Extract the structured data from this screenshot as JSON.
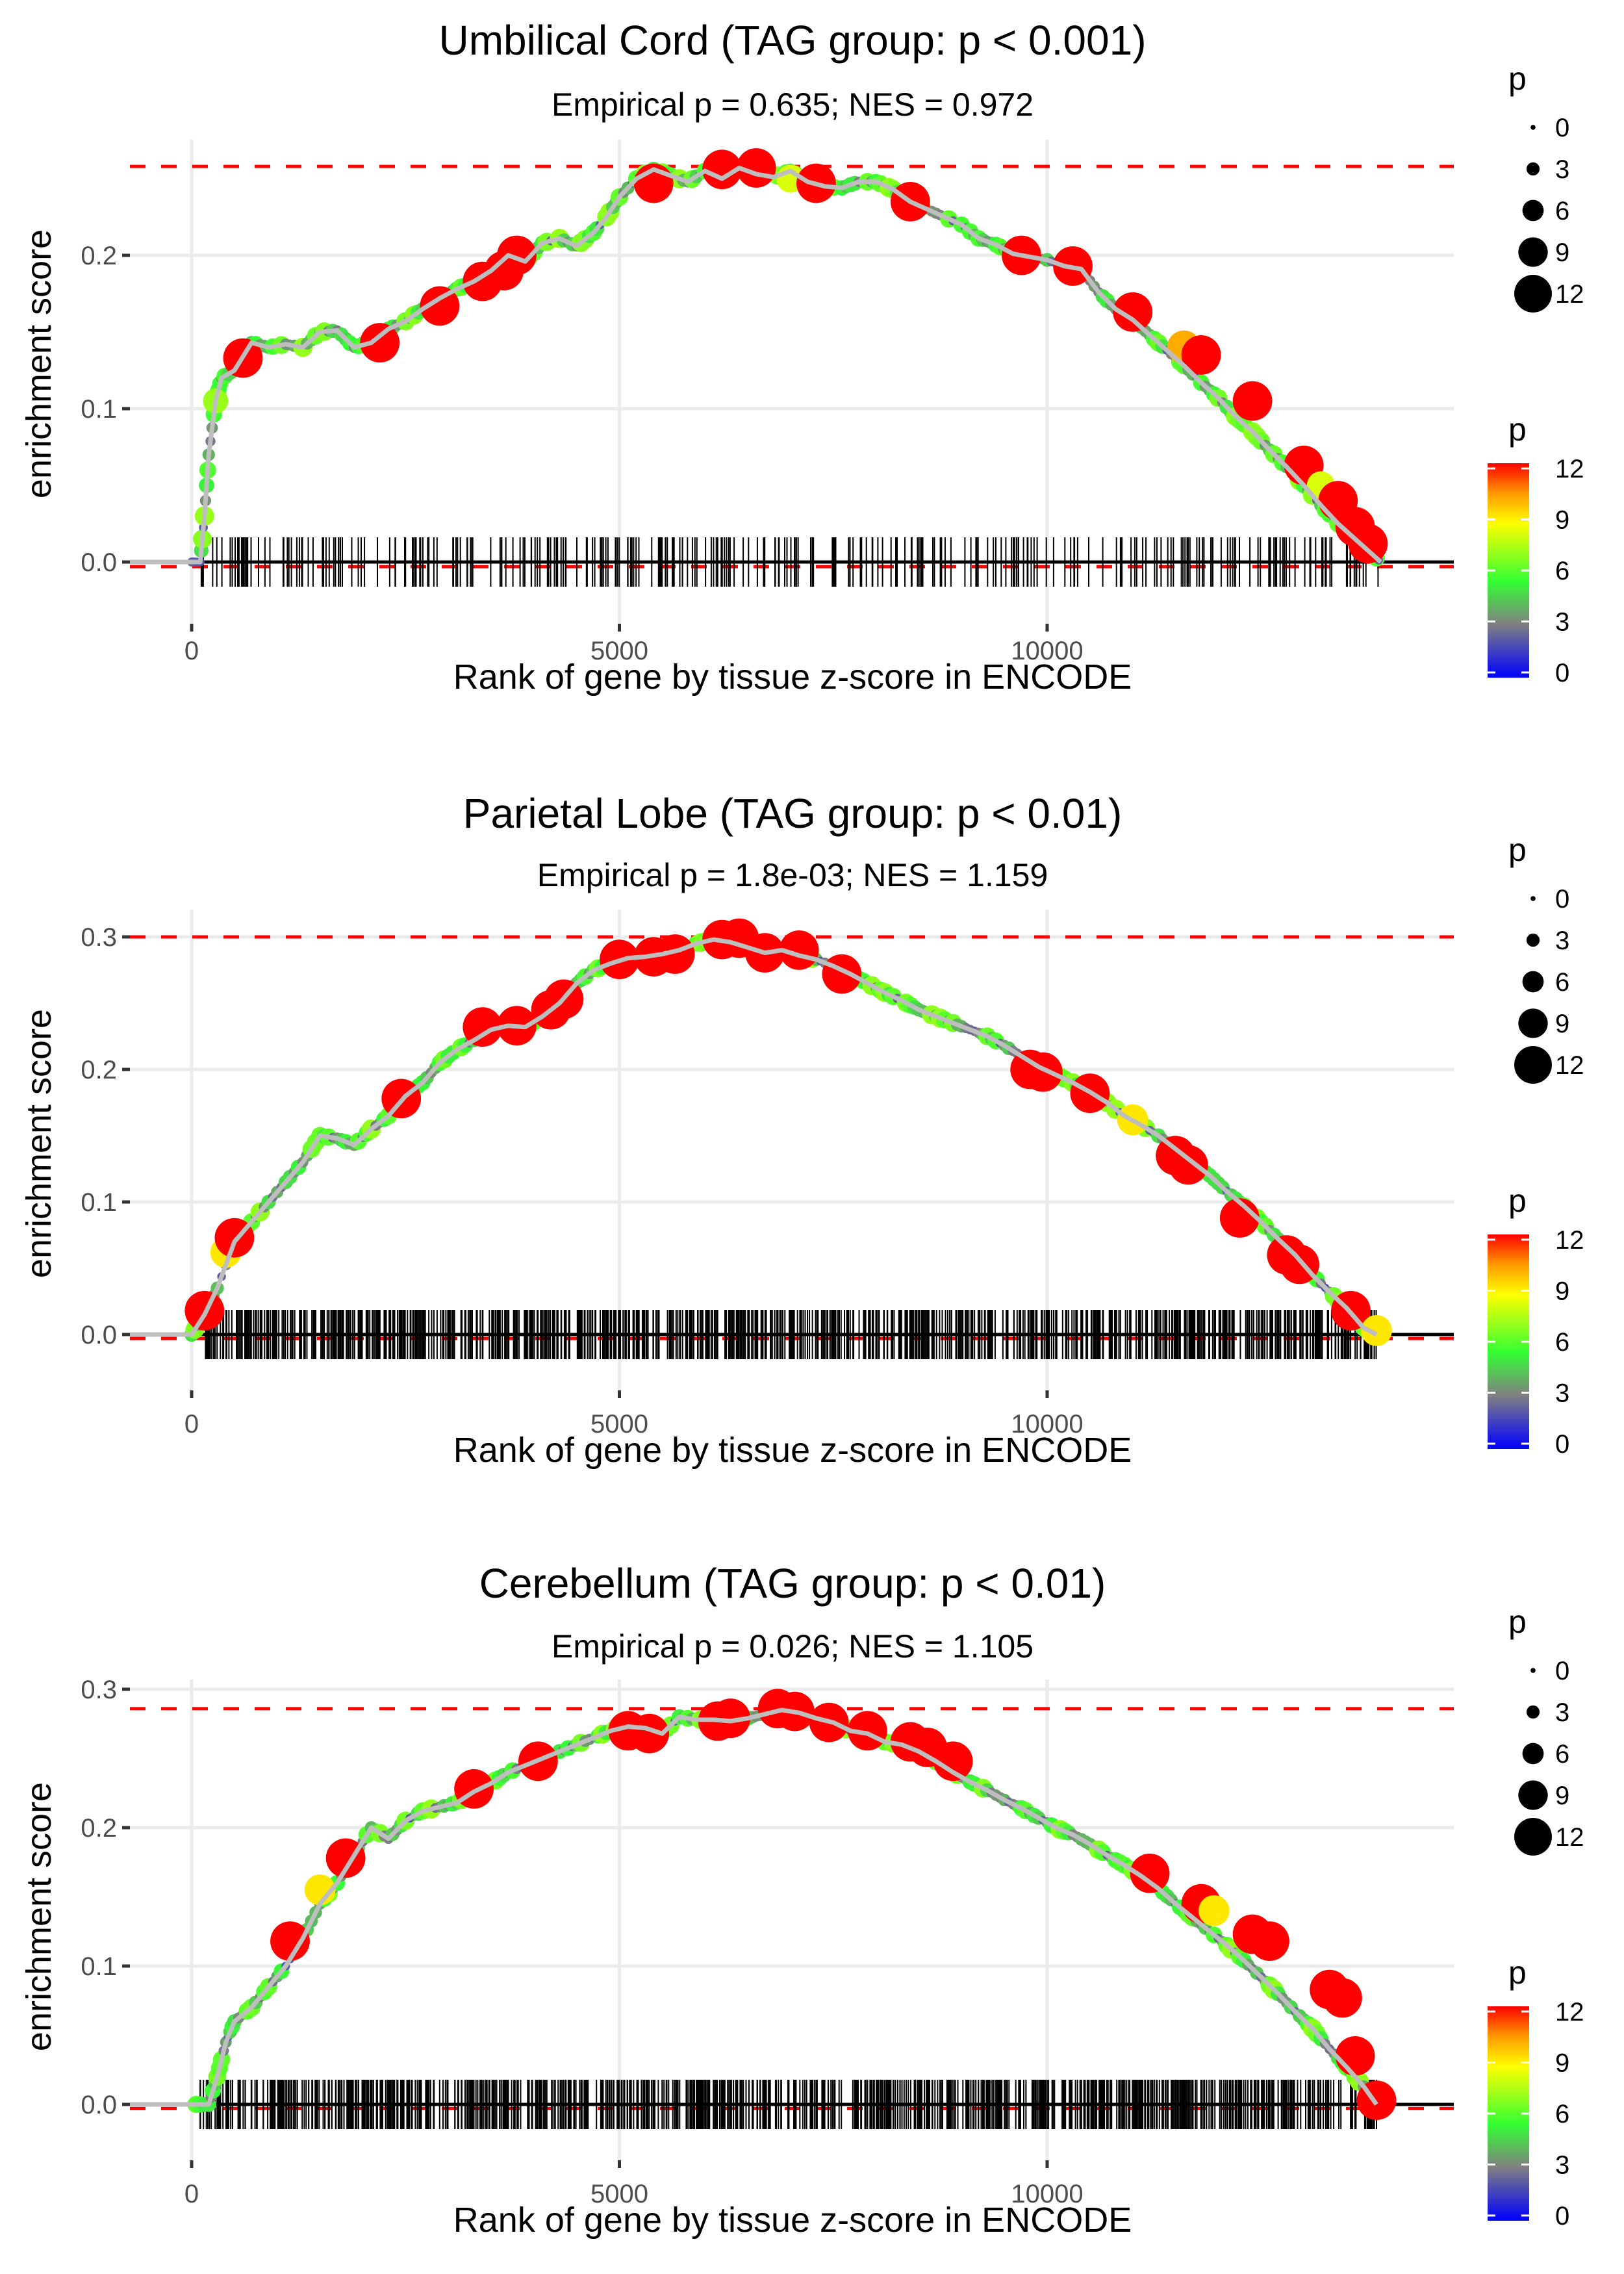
{
  "chart_data": [
    {
      "type": "line",
      "title": "Umbilical Cord (TAG group: p < 0.001)",
      "subtitle": "Empirical p = 0.635; NES = 0.972",
      "xlabel": "Rank of gene by tissue z-score in ENCODE",
      "ylabel": "enrichment score",
      "xlim": [
        -700,
        14700
      ],
      "ylim": [
        -0.02,
        0.275
      ],
      "x_ticks": [
        0,
        5000,
        10000
      ],
      "x_tick_labels": [
        "0",
        "5000",
        "10000"
      ],
      "y_ticks": [
        0.0,
        0.1,
        0.2
      ],
      "y_tick_labels": [
        "0.0",
        "0.1",
        "0.2"
      ],
      "max_es_line": 0.258,
      "min_es_line": -0.003,
      "grid": true,
      "curve": {
        "x": [
          0,
          100,
          150,
          200,
          280,
          350,
          500,
          700,
          900,
          1100,
          1300,
          1500,
          1700,
          1900,
          2100,
          2300,
          2500,
          2700,
          2900,
          3100,
          3300,
          3500,
          3700,
          3900,
          4100,
          4300,
          4500,
          4700,
          4850,
          5000,
          5200,
          5400,
          5600,
          5800,
          6000,
          6200,
          6400,
          6600,
          6800,
          7000,
          7200,
          7400,
          7600,
          7800,
          8000,
          8200,
          8400,
          8600,
          8800,
          9000,
          9200,
          9400,
          9600,
          9800,
          10000,
          10200,
          10400,
          10600,
          10800,
          11000,
          11200,
          11400,
          11600,
          11800,
          12000,
          12200,
          12400,
          12600,
          12800,
          13000,
          13200,
          13400,
          13600,
          13800,
          13900
        ],
        "y": [
          0,
          0.0,
          0.03,
          0.07,
          0.105,
          0.12,
          0.125,
          0.143,
          0.14,
          0.142,
          0.14,
          0.15,
          0.151,
          0.14,
          0.143,
          0.152,
          0.157,
          0.165,
          0.172,
          0.178,
          0.183,
          0.19,
          0.2,
          0.196,
          0.208,
          0.211,
          0.206,
          0.215,
          0.225,
          0.238,
          0.25,
          0.256,
          0.252,
          0.248,
          0.255,
          0.25,
          0.257,
          0.253,
          0.251,
          0.255,
          0.248,
          0.245,
          0.244,
          0.248,
          0.248,
          0.243,
          0.235,
          0.23,
          0.225,
          0.22,
          0.211,
          0.207,
          0.201,
          0.199,
          0.197,
          0.193,
          0.191,
          0.176,
          0.165,
          0.158,
          0.148,
          0.138,
          0.128,
          0.117,
          0.107,
          0.095,
          0.085,
          0.073,
          0.062,
          0.05,
          0.037,
          0.025,
          0.015,
          0.005,
          0.0
        ]
      },
      "big_points": [
        {
          "x": 600,
          "y": 0.133,
          "p": 12
        },
        {
          "x": 280,
          "y": 0.105,
          "p": 7
        },
        {
          "x": 2200,
          "y": 0.143,
          "p": 12
        },
        {
          "x": 2900,
          "y": 0.167,
          "p": 12
        },
        {
          "x": 3400,
          "y": 0.183,
          "p": 12
        },
        {
          "x": 3650,
          "y": 0.19,
          "p": 12
        },
        {
          "x": 3800,
          "y": 0.2,
          "p": 12
        },
        {
          "x": 5400,
          "y": 0.247,
          "p": 12
        },
        {
          "x": 6200,
          "y": 0.256,
          "p": 12
        },
        {
          "x": 6600,
          "y": 0.257,
          "p": 12
        },
        {
          "x": 7000,
          "y": 0.25,
          "p": 8
        },
        {
          "x": 7300,
          "y": 0.247,
          "p": 12
        },
        {
          "x": 8400,
          "y": 0.235,
          "p": 12
        },
        {
          "x": 9700,
          "y": 0.2,
          "p": 12
        },
        {
          "x": 10300,
          "y": 0.193,
          "p": 12
        },
        {
          "x": 11000,
          "y": 0.163,
          "p": 12
        },
        {
          "x": 11600,
          "y": 0.14,
          "p": 10
        },
        {
          "x": 11800,
          "y": 0.135,
          "p": 12
        },
        {
          "x": 12400,
          "y": 0.105,
          "p": 12
        },
        {
          "x": 13000,
          "y": 0.063,
          "p": 12
        },
        {
          "x": 13200,
          "y": 0.05,
          "p": 8
        },
        {
          "x": 13400,
          "y": 0.04,
          "p": 12
        },
        {
          "x": 13600,
          "y": 0.023,
          "p": 12
        },
        {
          "x": 13750,
          "y": 0.012,
          "p": 12
        }
      ],
      "rug_density": "sparse"
    },
    {
      "type": "line",
      "title": "Parietal Lobe (TAG group: p < 0.01)",
      "subtitle": "Empirical p = 1.8e-03; NES = 1.159",
      "xlabel": "Rank of gene by tissue z-score in ENCODE",
      "ylabel": "enrichment score",
      "xlim": [
        -700,
        14700
      ],
      "ylim": [
        -0.02,
        0.318
      ],
      "x_ticks": [
        0,
        5000,
        10000
      ],
      "x_tick_labels": [
        "0",
        "5000",
        "10000"
      ],
      "y_ticks": [
        0.0,
        0.1,
        0.2,
        0.3
      ],
      "y_tick_labels": [
        "0.0",
        "0.1",
        "0.2",
        "0.3"
      ],
      "max_es_line": 0.3,
      "min_es_line": -0.003,
      "grid": true,
      "curve": {
        "x": [
          0,
          150,
          300,
          500,
          700,
          900,
          1100,
          1300,
          1500,
          1700,
          1900,
          2100,
          2300,
          2500,
          2700,
          2900,
          3100,
          3300,
          3500,
          3700,
          3900,
          4100,
          4300,
          4500,
          4700,
          4900,
          5100,
          5300,
          5500,
          5700,
          5900,
          6100,
          6300,
          6500,
          6700,
          6900,
          7100,
          7300,
          7500,
          7700,
          7900,
          8100,
          8300,
          8500,
          8700,
          8900,
          9100,
          9300,
          9500,
          9700,
          9900,
          10100,
          10300,
          10500,
          10700,
          10900,
          11100,
          11300,
          11500,
          11700,
          11900,
          12100,
          12300,
          12500,
          12700,
          12900,
          13100,
          13300,
          13500,
          13700,
          13850
        ],
        "y": [
          0,
          0.015,
          0.035,
          0.07,
          0.085,
          0.1,
          0.115,
          0.13,
          0.15,
          0.148,
          0.143,
          0.155,
          0.165,
          0.18,
          0.19,
          0.205,
          0.215,
          0.222,
          0.23,
          0.233,
          0.232,
          0.24,
          0.25,
          0.265,
          0.275,
          0.28,
          0.284,
          0.285,
          0.287,
          0.29,
          0.295,
          0.298,
          0.296,
          0.292,
          0.288,
          0.29,
          0.286,
          0.283,
          0.278,
          0.272,
          0.265,
          0.258,
          0.252,
          0.245,
          0.24,
          0.235,
          0.23,
          0.225,
          0.218,
          0.21,
          0.202,
          0.196,
          0.19,
          0.183,
          0.175,
          0.165,
          0.158,
          0.15,
          0.14,
          0.13,
          0.12,
          0.108,
          0.097,
          0.085,
          0.072,
          0.06,
          0.045,
          0.032,
          0.02,
          0.005,
          0.0
        ]
      },
      "big_points": [
        {
          "x": 150,
          "y": 0.018,
          "p": 12
        },
        {
          "x": 400,
          "y": 0.062,
          "p": 9
        },
        {
          "x": 500,
          "y": 0.073,
          "p": 12
        },
        {
          "x": 2450,
          "y": 0.178,
          "p": 12
        },
        {
          "x": 3400,
          "y": 0.232,
          "p": 12
        },
        {
          "x": 3800,
          "y": 0.233,
          "p": 12
        },
        {
          "x": 4200,
          "y": 0.245,
          "p": 12
        },
        {
          "x": 4350,
          "y": 0.253,
          "p": 12
        },
        {
          "x": 5000,
          "y": 0.283,
          "p": 12
        },
        {
          "x": 5400,
          "y": 0.285,
          "p": 12
        },
        {
          "x": 5650,
          "y": 0.287,
          "p": 12
        },
        {
          "x": 6200,
          "y": 0.298,
          "p": 12
        },
        {
          "x": 6400,
          "y": 0.299,
          "p": 12
        },
        {
          "x": 6700,
          "y": 0.288,
          "p": 12
        },
        {
          "x": 7100,
          "y": 0.29,
          "p": 12
        },
        {
          "x": 7600,
          "y": 0.272,
          "p": 12
        },
        {
          "x": 9800,
          "y": 0.2,
          "p": 12
        },
        {
          "x": 9950,
          "y": 0.198,
          "p": 12
        },
        {
          "x": 10500,
          "y": 0.182,
          "p": 12
        },
        {
          "x": 11000,
          "y": 0.162,
          "p": 9
        },
        {
          "x": 11500,
          "y": 0.135,
          "p": 12
        },
        {
          "x": 11650,
          "y": 0.128,
          "p": 12
        },
        {
          "x": 12250,
          "y": 0.088,
          "p": 12
        },
        {
          "x": 12800,
          "y": 0.06,
          "p": 12
        },
        {
          "x": 12950,
          "y": 0.053,
          "p": 12
        },
        {
          "x": 13550,
          "y": 0.018,
          "p": 12
        },
        {
          "x": 13850,
          "y": 0.003,
          "p": 9
        }
      ],
      "rug_density": "dense"
    },
    {
      "type": "line",
      "title": "Cerebellum (TAG group: p < 0.01)",
      "subtitle": "Empirical p = 0.026; NES = 1.105",
      "xlabel": "Rank of gene by tissue z-score in ENCODE",
      "ylabel": "enrichment score",
      "xlim": [
        -700,
        14700
      ],
      "ylim": [
        -0.02,
        0.305
      ],
      "x_ticks": [
        0,
        5000,
        10000
      ],
      "x_tick_labels": [
        "0",
        "5000",
        "10000"
      ],
      "y_ticks": [
        0.0,
        0.1,
        0.2,
        0.3
      ],
      "y_tick_labels": [
        "0.0",
        "0.1",
        "0.2",
        "0.3"
      ],
      "max_es_line": 0.286,
      "min_es_line": -0.003,
      "grid": true,
      "curve": {
        "x": [
          0,
          200,
          300,
          400,
          500,
          700,
          900,
          1100,
          1300,
          1500,
          1700,
          1900,
          2100,
          2300,
          2500,
          2700,
          2900,
          3100,
          3300,
          3500,
          3700,
          3900,
          4100,
          4300,
          4500,
          4700,
          4900,
          5100,
          5300,
          5500,
          5700,
          5900,
          6100,
          6300,
          6500,
          6700,
          6900,
          7100,
          7300,
          7500,
          7700,
          7900,
          8100,
          8300,
          8500,
          8700,
          8900,
          9100,
          9300,
          9500,
          9700,
          9900,
          10100,
          10300,
          10500,
          10700,
          10900,
          11100,
          11300,
          11500,
          11700,
          11900,
          12100,
          12300,
          12500,
          12700,
          12900,
          13100,
          13300,
          13500,
          13700,
          13850
        ],
        "y": [
          0,
          0.0,
          0.02,
          0.045,
          0.06,
          0.07,
          0.085,
          0.1,
          0.12,
          0.145,
          0.16,
          0.18,
          0.2,
          0.192,
          0.205,
          0.212,
          0.215,
          0.218,
          0.226,
          0.232,
          0.24,
          0.245,
          0.25,
          0.255,
          0.26,
          0.265,
          0.27,
          0.273,
          0.272,
          0.268,
          0.28,
          0.278,
          0.278,
          0.277,
          0.279,
          0.282,
          0.285,
          0.283,
          0.279,
          0.276,
          0.27,
          0.268,
          0.262,
          0.26,
          0.255,
          0.248,
          0.24,
          0.233,
          0.227,
          0.22,
          0.214,
          0.207,
          0.2,
          0.195,
          0.188,
          0.18,
          0.173,
          0.165,
          0.156,
          0.145,
          0.135,
          0.125,
          0.115,
          0.104,
          0.092,
          0.08,
          0.067,
          0.055,
          0.04,
          0.027,
          0.013,
          0.0
        ]
      },
      "big_points": [
        {
          "x": 1150,
          "y": 0.118,
          "p": 12
        },
        {
          "x": 1500,
          "y": 0.155,
          "p": 9
        },
        {
          "x": 1800,
          "y": 0.178,
          "p": 12
        },
        {
          "x": 3300,
          "y": 0.228,
          "p": 12
        },
        {
          "x": 4050,
          "y": 0.248,
          "p": 12
        },
        {
          "x": 5100,
          "y": 0.27,
          "p": 12
        },
        {
          "x": 5350,
          "y": 0.268,
          "p": 12
        },
        {
          "x": 6150,
          "y": 0.277,
          "p": 12
        },
        {
          "x": 6300,
          "y": 0.279,
          "p": 12
        },
        {
          "x": 6850,
          "y": 0.286,
          "p": 12
        },
        {
          "x": 7050,
          "y": 0.284,
          "p": 12
        },
        {
          "x": 7450,
          "y": 0.276,
          "p": 12
        },
        {
          "x": 7900,
          "y": 0.27,
          "p": 12
        },
        {
          "x": 8400,
          "y": 0.262,
          "p": 12
        },
        {
          "x": 8600,
          "y": 0.258,
          "p": 12
        },
        {
          "x": 8900,
          "y": 0.248,
          "p": 12
        },
        {
          "x": 11200,
          "y": 0.167,
          "p": 12
        },
        {
          "x": 11800,
          "y": 0.145,
          "p": 12
        },
        {
          "x": 11950,
          "y": 0.14,
          "p": 9
        },
        {
          "x": 12400,
          "y": 0.123,
          "p": 12
        },
        {
          "x": 12600,
          "y": 0.118,
          "p": 12
        },
        {
          "x": 13300,
          "y": 0.083,
          "p": 12
        },
        {
          "x": 13450,
          "y": 0.077,
          "p": 12
        },
        {
          "x": 13600,
          "y": 0.035,
          "p": 12
        },
        {
          "x": 13850,
          "y": 0.003,
          "p": 12
        }
      ],
      "rug_density": "dense"
    }
  ],
  "legend": {
    "size_title": "p",
    "size_labels": [
      "0",
      "3",
      "6",
      "9",
      "12"
    ],
    "color_title": "p",
    "color_labels": [
      "12",
      "9",
      "6",
      "3",
      "0"
    ],
    "colors": [
      "#0000ff",
      "#808080",
      "#00ff00",
      "#ffff00",
      "#ff8000",
      "#ff0000"
    ]
  }
}
